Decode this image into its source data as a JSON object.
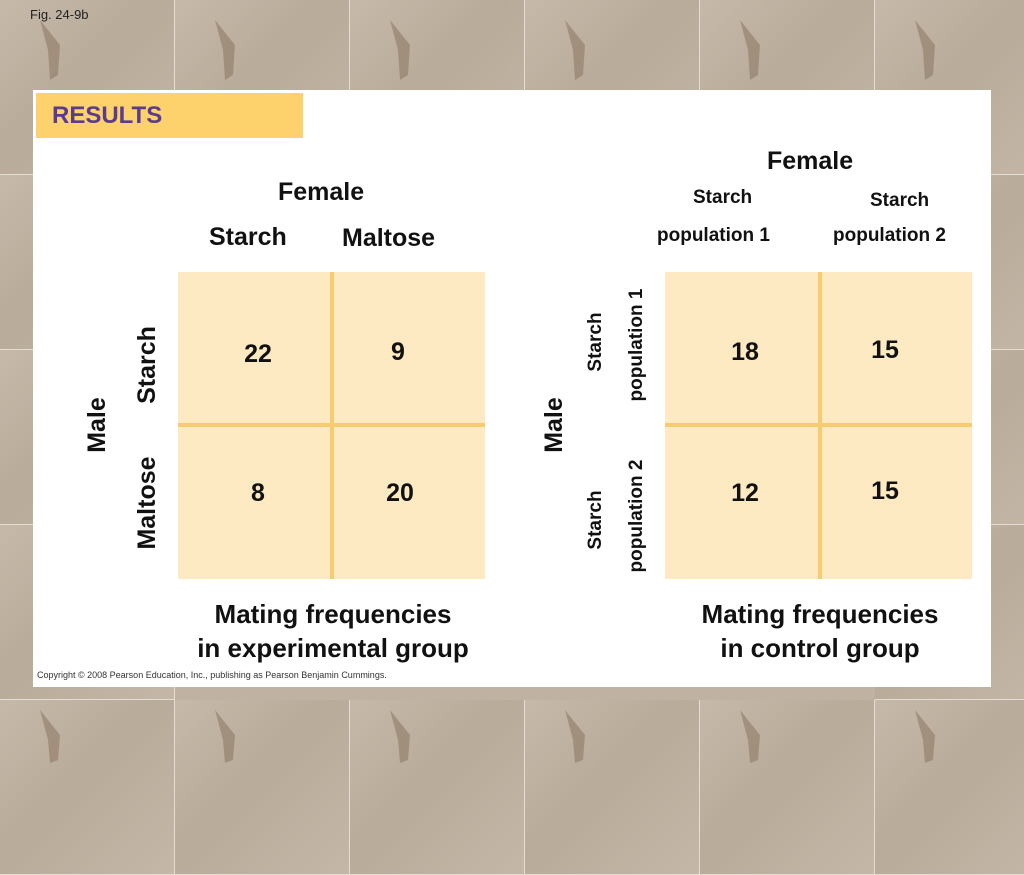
{
  "figure_label": "Fig. 24-9b",
  "results_label": "RESULTS",
  "experimental": {
    "female_label": "Female",
    "col_labels": [
      "Starch",
      "Maltose"
    ],
    "male_label": "Male",
    "row_labels": [
      "Starch",
      "Maltose"
    ],
    "values": [
      [
        22,
        9
      ],
      [
        8,
        20
      ]
    ],
    "caption_line1": "Mating frequencies",
    "caption_line2": "in experimental group"
  },
  "control": {
    "female_label": "Female",
    "col_labels": [
      {
        "line1": "Starch",
        "line2": "population 1"
      },
      {
        "line1": "Starch",
        "line2": "population 2"
      }
    ],
    "male_label": "Male",
    "row_labels": [
      {
        "line1": "Starch",
        "line2": "population 1"
      },
      {
        "line1": "Starch",
        "line2": "population 2"
      }
    ],
    "values": [
      [
        18,
        15
      ],
      [
        12,
        15
      ]
    ],
    "caption_line1": "Mating frequencies",
    "caption_line2": "in control group"
  },
  "copyright": "Copyright © 2008 Pearson Education, Inc., publishing as Pearson Benjamin Cummings.",
  "colors": {
    "results_tab": "#fdd16b",
    "results_text": "#5b3b8c",
    "grid_fill": "#fde9c2",
    "grid_lines": "#f5cc70"
  }
}
